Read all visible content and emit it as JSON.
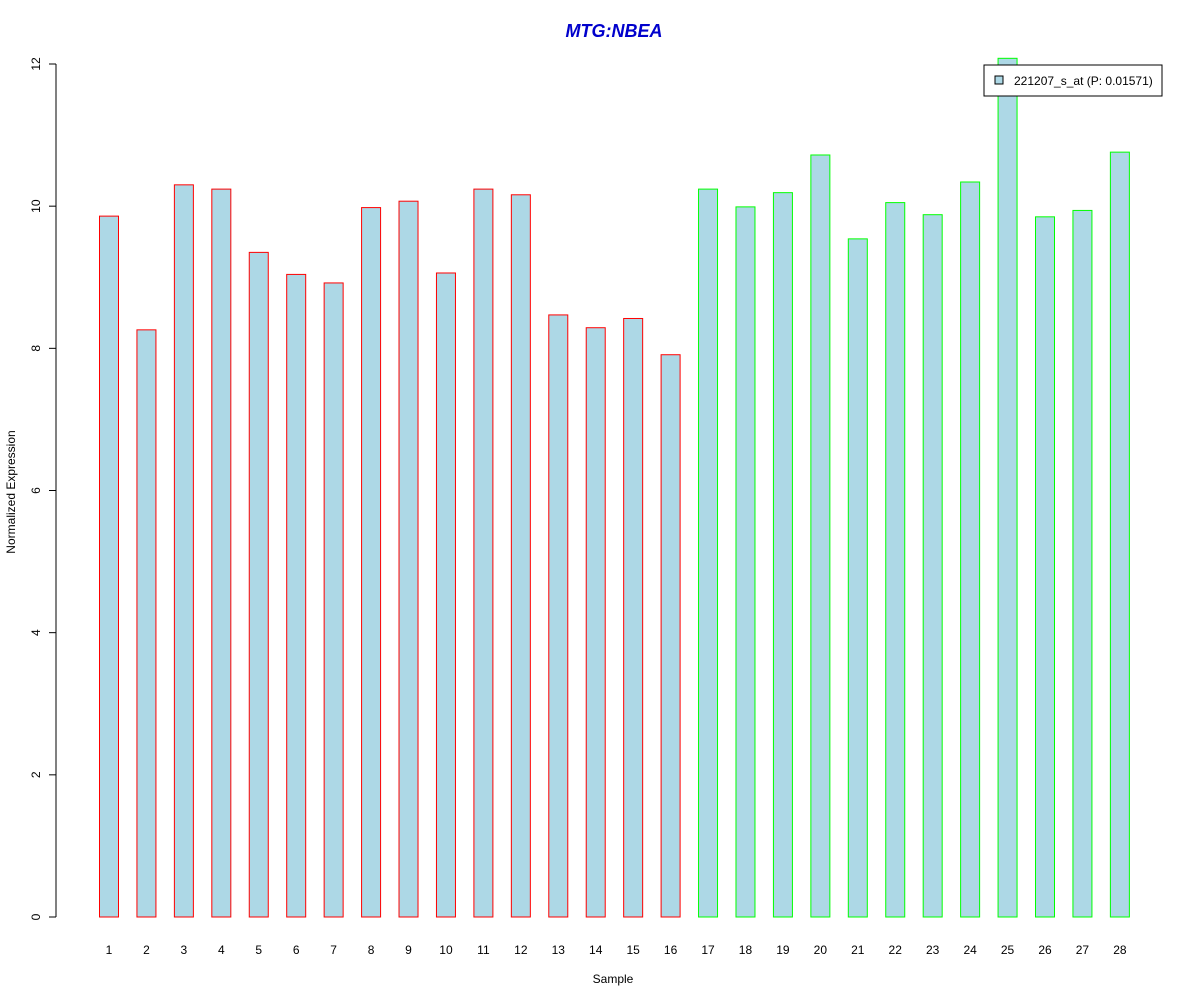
{
  "chart_data": {
    "type": "bar",
    "title": "MTG:NBEA",
    "title_color": "#0000CC",
    "xlabel": "Sample",
    "ylabel": "Normalized Expression",
    "ylim": [
      0,
      12
    ],
    "yticks": [
      0,
      2,
      4,
      6,
      8,
      10,
      12
    ],
    "grid": false,
    "categories": [
      "1",
      "2",
      "3",
      "4",
      "5",
      "6",
      "7",
      "8",
      "9",
      "10",
      "11",
      "12",
      "13",
      "14",
      "15",
      "16",
      "17",
      "18",
      "19",
      "20",
      "21",
      "22",
      "23",
      "24",
      "25",
      "26",
      "27",
      "28"
    ],
    "series": [
      {
        "name": "221207_s_at (P: 0.01571)",
        "fill": "#ADD8E6",
        "values": [
          9.86,
          8.26,
          10.3,
          10.24,
          9.35,
          9.04,
          8.92,
          9.98,
          10.07,
          9.06,
          10.24,
          10.16,
          8.47,
          8.29,
          8.42,
          7.91,
          10.24,
          9.99,
          10.19,
          10.72,
          9.54,
          10.05,
          9.88,
          10.34,
          12.08,
          9.85,
          9.94,
          10.76
        ]
      }
    ],
    "group_border_colors": [
      "#FF0000",
      "#FF0000",
      "#FF0000",
      "#FF0000",
      "#FF0000",
      "#FF0000",
      "#FF0000",
      "#FF0000",
      "#FF0000",
      "#FF0000",
      "#FF0000",
      "#FF0000",
      "#FF0000",
      "#FF0000",
      "#FF0000",
      "#FF0000",
      "#00FF00",
      "#00FF00",
      "#00FF00",
      "#00FF00",
      "#00FF00",
      "#00FF00",
      "#00FF00",
      "#00FF00",
      "#00FF00",
      "#00FF00",
      "#00FF00",
      "#00FF00"
    ],
    "legend": {
      "entries": [
        "221207_s_at (P: 0.01571)"
      ],
      "placement": "top-right"
    }
  }
}
